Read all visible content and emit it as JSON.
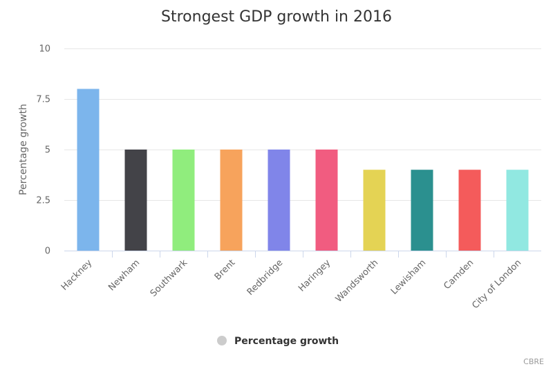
{
  "chart_data": {
    "type": "bar",
    "title": "Strongest GDP growth in 2016",
    "ylabel": "Percentage growth",
    "xlabel": "",
    "categories": [
      "Hackney",
      "Newham",
      "Southwark",
      "Brent",
      "Redbridge",
      "Haringey",
      "Wandsworth",
      "Lewisham",
      "Camden",
      "City of London"
    ],
    "series": [
      {
        "name": "Percentage growth",
        "values": [
          8,
          5,
          5,
          5,
          5,
          5,
          4,
          4,
          4,
          4
        ]
      }
    ],
    "colors": [
      "#7cb5ec",
      "#434348",
      "#90ed7d",
      "#f7a35c",
      "#8085e9",
      "#f15c80",
      "#e4d354",
      "#2b908f",
      "#f45b5b",
      "#91e8e1"
    ],
    "ylim": [
      0,
      10
    ],
    "yticks": [
      "0",
      "2.5",
      "5",
      "7.5",
      "10"
    ],
    "grid": true,
    "legend_position": "bottom-center",
    "legend_marker_color": "#cccccc"
  },
  "credit": "CBRE"
}
